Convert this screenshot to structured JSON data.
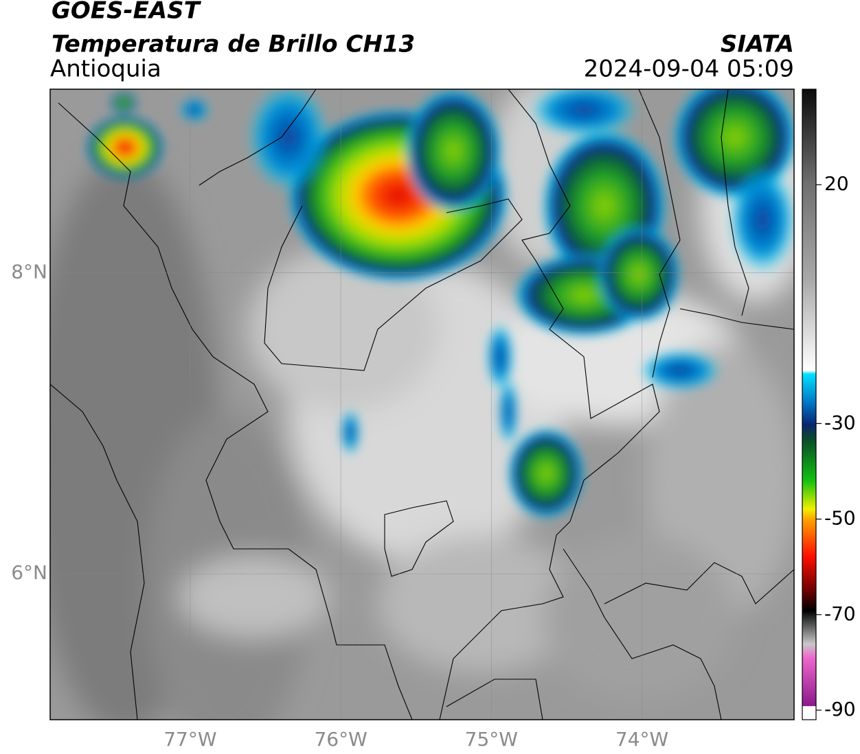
{
  "header": {
    "satellite": "GOES-EAST",
    "product": "Temperatura de Brillo CH13",
    "region": "Antioquia",
    "source": "SIATA",
    "datetime": "2024-09-04 05:09"
  },
  "map": {
    "xlim": [
      -77.93,
      -72.99
    ],
    "ylim": [
      5.03,
      9.22
    ],
    "grid": true,
    "xticks": [
      {
        "value": -77,
        "label": "77°W"
      },
      {
        "value": -76,
        "label": "76°W"
      },
      {
        "value": -75,
        "label": "75°W"
      },
      {
        "value": -74,
        "label": "74°W"
      }
    ],
    "yticks": [
      {
        "value": 8,
        "label": "8°N"
      },
      {
        "value": 6,
        "label": "6°N"
      }
    ]
  },
  "colorbar": {
    "lim": [
      -92,
      40
    ],
    "ticks": [
      20,
      -30,
      -50,
      -70,
      -90
    ]
  }
}
